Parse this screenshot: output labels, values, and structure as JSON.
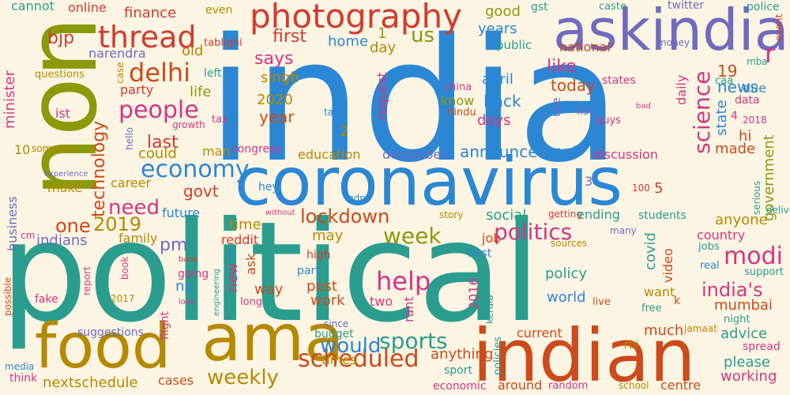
{
  "words": [
    {
      "text": "india",
      "color": "#2b87d3"
    },
    {
      "text": "political",
      "color": "#2a9d8f"
    },
    {
      "text": "non",
      "color": "#8a9a0b"
    },
    {
      "text": "coronavirus",
      "color": "#2b87d3"
    },
    {
      "text": "askindia",
      "color": "#6f6bbf"
    },
    {
      "text": "indian",
      "color": "#cc4a1b"
    },
    {
      "text": "food",
      "color": "#b58900"
    },
    {
      "text": "ama",
      "color": "#b58900"
    },
    {
      "text": "photography",
      "color": "#d33a2f"
    },
    {
      "text": "thread",
      "color": "#d33a2f"
    },
    {
      "text": "delhi",
      "color": "#cc4a1b"
    },
    {
      "text": "people",
      "color": "#d33682"
    },
    {
      "text": "economy",
      "color": "#2b87d3"
    },
    {
      "text": "technology",
      "color": "#cc4a1b"
    },
    {
      "text": "science",
      "color": "#d33682"
    },
    {
      "text": "scheduled",
      "color": "#cc4a1b"
    },
    {
      "text": "politics",
      "color": "#d33682"
    },
    {
      "text": "sports",
      "color": "#2a9d8f"
    },
    {
      "text": "weekly",
      "color": "#b58900"
    },
    {
      "text": "lockdown",
      "color": "#cc4a1b"
    },
    {
      "text": "week",
      "color": "#8a9a0b"
    },
    {
      "text": "help",
      "color": "#d33682"
    },
    {
      "text": "modi",
      "color": "#d33682"
    },
    {
      "text": "would",
      "color": "#2b87d3"
    },
    {
      "text": "need",
      "color": "#d33682"
    },
    {
      "text": "one",
      "color": "#cc4a1b"
    },
    {
      "text": "2019",
      "color": "#b58900"
    },
    {
      "text": "us",
      "color": "#8a9a0b"
    },
    {
      "text": "r",
      "color": "#d33682"
    },
    {
      "text": "india's",
      "color": "#d33682"
    },
    {
      "text": "announcement",
      "color": "#2b87d3"
    },
    {
      "text": "bjp",
      "color": "#d33a2f"
    },
    {
      "text": "finance",
      "color": "#d33a2f"
    },
    {
      "text": "online",
      "color": "#d33a2f"
    },
    {
      "text": "cannot",
      "color": "#2a9d8f"
    },
    {
      "text": "even",
      "color": "#b58900"
    },
    {
      "text": "good",
      "color": "#8a9a0b"
    },
    {
      "text": "gst",
      "color": "#2a9d8f"
    },
    {
      "text": "caste",
      "color": "#2a9d8f"
    },
    {
      "text": "twitter",
      "color": "#6f6bbf"
    },
    {
      "text": "police",
      "color": "#2a9d8f"
    },
    {
      "text": "tablighi",
      "color": "#d33a2f"
    },
    {
      "text": "narendra",
      "color": "#6f6bbf"
    },
    {
      "text": "old",
      "color": "#b58900"
    },
    {
      "text": "first",
      "color": "#d33a2f"
    },
    {
      "text": "1",
      "color": "#8a9a0b"
    },
    {
      "text": "years",
      "color": "#2b87d3"
    },
    {
      "text": "public",
      "color": "#2a9d8f"
    },
    {
      "text": "national",
      "color": "#cc4a1b"
    },
    {
      "text": "money",
      "color": "#6f6bbf"
    },
    {
      "text": "event",
      "color": "#d33a2f"
    },
    {
      "text": "mba",
      "color": "#2a9d8f"
    },
    {
      "text": "says",
      "color": "#d33682"
    },
    {
      "text": "home",
      "color": "#2b87d3"
    },
    {
      "text": "day",
      "color": "#b58900"
    },
    {
      "text": "like",
      "color": "#d33682"
    },
    {
      "text": "19",
      "color": "#cc4a1b"
    },
    {
      "text": "news",
      "color": "#2b87d3"
    },
    {
      "text": "minister",
      "color": "#d33682"
    },
    {
      "text": "questions",
      "color": "#b58900"
    },
    {
      "text": "case",
      "color": "#b58900"
    },
    {
      "text": "left",
      "color": "#2a9d8f"
    },
    {
      "text": "life",
      "color": "#8a9a0b"
    },
    {
      "text": "party",
      "color": "#d33a2f"
    },
    {
      "text": "singh",
      "color": "#b58900"
    },
    {
      "text": "april",
      "color": "#2b87d3"
    },
    {
      "text": "today",
      "color": "#cc4a1b"
    },
    {
      "text": "states",
      "color": "#d33682"
    },
    {
      "text": "daily",
      "color": "#d33682"
    },
    {
      "text": "caa",
      "color": "#2a9d8f"
    },
    {
      "text": "due",
      "color": "#2b87d3"
    },
    {
      "text": "ist",
      "color": "#d33682"
    },
    {
      "text": "tax",
      "color": "#d33682"
    },
    {
      "text": "growth",
      "color": "#d33682"
    },
    {
      "text": "2020",
      "color": "#b58900"
    },
    {
      "text": "year",
      "color": "#cc4a1b"
    },
    {
      "text": "get",
      "color": "#2b87d3"
    },
    {
      "text": "request",
      "color": "#d33682"
    },
    {
      "text": "china",
      "color": "#d33682"
    },
    {
      "text": "hindu",
      "color": "#cc4a1b"
    },
    {
      "text": "know",
      "color": "#8a9a0b"
    },
    {
      "text": "back",
      "color": "#2b87d3"
    },
    {
      "text": "use",
      "color": "#6f6bbf"
    },
    {
      "text": "list",
      "color": "#6f6bbf"
    },
    {
      "text": "bad",
      "color": "#d33682"
    },
    {
      "text": "guys",
      "color": "#d33682"
    },
    {
      "text": "state",
      "color": "#2b87d3"
    },
    {
      "text": "data",
      "color": "#d33682"
    },
    {
      "text": "2018",
      "color": "#d33682"
    },
    {
      "text": "4",
      "color": "#d33682"
    },
    {
      "text": "government",
      "color": "#8a9a0b"
    },
    {
      "text": "take",
      "color": "#2b87d3"
    },
    {
      "text": "days",
      "color": "#d33682"
    },
    {
      "text": "2",
      "color": "#b58900"
    },
    {
      "text": "hi",
      "color": "#cc4a1b"
    },
    {
      "text": "made",
      "color": "#cc4a1b"
    },
    {
      "text": "last",
      "color": "#d33a2f"
    },
    {
      "text": "hello",
      "color": "#6f6bbf"
    },
    {
      "text": "someone",
      "color": "#b58900"
    },
    {
      "text": "10",
      "color": "#b58900"
    },
    {
      "text": "man",
      "color": "#b58900"
    },
    {
      "text": "congress",
      "color": "#d33682"
    },
    {
      "text": "education",
      "color": "#b58900"
    },
    {
      "text": "december",
      "color": "#6f6bbf"
    },
    {
      "text": "discussion",
      "color": "#d33682"
    },
    {
      "text": "could",
      "color": "#b58900"
    },
    {
      "text": "experience",
      "color": "#6f6bbf"
    },
    {
      "text": "make",
      "color": "#b58900"
    },
    {
      "text": "career",
      "color": "#b58900"
    },
    {
      "text": "govt",
      "color": "#d33a2f"
    },
    {
      "text": "3",
      "color": "#6f6bbf"
    },
    {
      "text": "hey",
      "color": "#2b87d3"
    },
    {
      "text": "100",
      "color": "#d33a2f"
    },
    {
      "text": "5",
      "color": "#d33a2f"
    },
    {
      "text": "serious",
      "color": "#2a9d8f"
    },
    {
      "text": "delivery",
      "color": "#2a9d8f"
    },
    {
      "text": "business",
      "color": "#6f6bbf"
    },
    {
      "text": "future",
      "color": "#2b87d3"
    },
    {
      "text": "without",
      "color": "#d33682"
    },
    {
      "text": "gdp",
      "color": "#2b87d3"
    },
    {
      "text": "story",
      "color": "#b58900"
    },
    {
      "text": "getting",
      "color": "#d33a2f"
    },
    {
      "text": "students",
      "color": "#2a9d8f"
    },
    {
      "text": "anyone",
      "color": "#b58900"
    },
    {
      "text": "time",
      "color": "#b58900"
    },
    {
      "text": "ending",
      "color": "#2a9d8f"
    },
    {
      "text": "many",
      "color": "#6f6bbf"
    },
    {
      "text": "country",
      "color": "#d33682"
    },
    {
      "text": "indians",
      "color": "#6f6bbf"
    },
    {
      "text": "family",
      "color": "#b58900"
    },
    {
      "text": "reddit",
      "color": "#d33a2f"
    },
    {
      "text": "may",
      "color": "#b58900"
    },
    {
      "text": "social",
      "color": "#2a9d8f"
    },
    {
      "text": "job",
      "color": "#cc4a1b"
    },
    {
      "text": "sources",
      "color": "#b58900"
    },
    {
      "text": "covid",
      "color": "#2a9d8f"
    },
    {
      "text": "cm",
      "color": "#d33682"
    },
    {
      "text": "pm",
      "color": "#6f6bbf"
    },
    {
      "text": "bank",
      "color": "#d33a2f"
    },
    {
      "text": "6",
      "color": "#2b87d3"
    },
    {
      "text": "ask",
      "color": "#cc4a1b"
    },
    {
      "text": "high",
      "color": "#d33a2f"
    },
    {
      "text": "best",
      "color": "#2b87d3"
    },
    {
      "text": "jobs",
      "color": "#2a9d8f"
    },
    {
      "text": "video",
      "color": "#cc4a1b"
    },
    {
      "text": "real",
      "color": "#2b87d3"
    },
    {
      "text": "support",
      "color": "#2a9d8f"
    },
    {
      "text": "report",
      "color": "#d33682"
    },
    {
      "text": "book",
      "color": "#d33682"
    },
    {
      "text": "going",
      "color": "#d33682"
    },
    {
      "text": "np",
      "color": "#2b87d3"
    },
    {
      "text": "new",
      "color": "#d33682"
    },
    {
      "text": "way",
      "color": "#cc4a1b"
    },
    {
      "text": "part",
      "color": "#2b87d3"
    },
    {
      "text": "policy",
      "color": "#2a9d8f"
    },
    {
      "text": "want",
      "color": "#b58900"
    },
    {
      "text": "mumbai",
      "color": "#cc4a1b"
    },
    {
      "text": "possible",
      "color": "#cc4a1b"
    },
    {
      "text": "fake",
      "color": "#d33682"
    },
    {
      "text": "2017",
      "color": "#b58900"
    },
    {
      "text": "engineering",
      "color": "#2a9d8f"
    },
    {
      "text": "love",
      "color": "#d33682"
    },
    {
      "text": "long",
      "color": "#d33682"
    },
    {
      "text": "post",
      "color": "#cc4a1b"
    },
    {
      "text": "work",
      "color": "#cc4a1b"
    },
    {
      "text": "2016",
      "color": "#d33682"
    },
    {
      "text": "two",
      "color": "#d33682"
    },
    {
      "text": "rant",
      "color": "#d33682"
    },
    {
      "text": "world",
      "color": "#2b87d3"
    },
    {
      "text": "live",
      "color": "#cc4a1b"
    },
    {
      "text": "free",
      "color": "#2a9d8f"
    },
    {
      "text": "k",
      "color": "#cc4a1b"
    },
    {
      "text": "jamaat",
      "color": "#b58900"
    },
    {
      "text": "night",
      "color": "#2a9d8f"
    },
    {
      "text": "much",
      "color": "#cc4a1b"
    },
    {
      "text": "advice",
      "color": "#2a9d8f"
    },
    {
      "text": "suggestions",
      "color": "#6f6bbf"
    },
    {
      "text": "flight",
      "color": "#d33682"
    },
    {
      "text": "since",
      "color": "#6f6bbf"
    },
    {
      "text": "budget",
      "color": "#2a9d8f"
    },
    {
      "text": "times",
      "color": "#b58900"
    },
    {
      "text": "kerala",
      "color": "#2a9d8f"
    },
    {
      "text": "current",
      "color": "#cc4a1b"
    },
    {
      "text": "rbi",
      "color": "#b58900"
    },
    {
      "text": "please",
      "color": "#2a9d8f"
    },
    {
      "text": "spread",
      "color": "#d33682"
    },
    {
      "text": "media",
      "color": "#2b87d3"
    },
    {
      "text": "think",
      "color": "#d33682"
    },
    {
      "text": "anything",
      "color": "#cc4a1b"
    },
    {
      "text": "sport",
      "color": "#2a9d8f"
    },
    {
      "text": "policies",
      "color": "#2a9d8f"
    },
    {
      "text": "working",
      "color": "#d33682"
    },
    {
      "text": "nextschedule",
      "color": "#b58900"
    },
    {
      "text": "cases",
      "color": "#cc4a1b"
    },
    {
      "text": "economic",
      "color": "#d33682"
    },
    {
      "text": "around",
      "color": "#cc4a1b"
    },
    {
      "text": "random",
      "color": "#d33682"
    },
    {
      "text": "school",
      "color": "#b58900"
    },
    {
      "text": "centre",
      "color": "#cc4a1b"
    }
  ]
}
